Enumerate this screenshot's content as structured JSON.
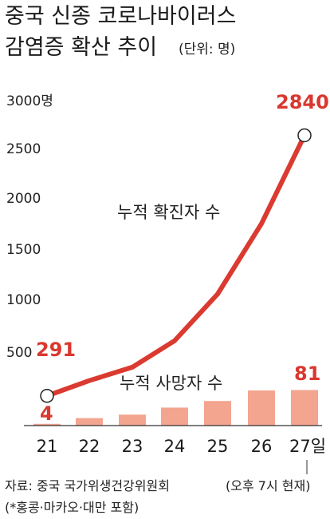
{
  "title_line1": "중국 신종 코로나바이러스",
  "title_line2": "감염증 확산 추이",
  "unit_note": "(단위: 명)",
  "colors": {
    "line": "#db3a30",
    "bar": "#f3a58f",
    "text": "#1a1a1a",
    "axis": "#333333"
  },
  "chart_data": {
    "type": "line",
    "categories": [
      "21",
      "22",
      "23",
      "24",
      "25",
      "26",
      "27일"
    ],
    "y_ticks": [
      "3000명",
      "2500",
      "2000",
      "1500",
      "1000",
      "500"
    ],
    "ylim": [
      0,
      3000
    ],
    "series": [
      {
        "name": "누적 확진자 수",
        "type": "line",
        "values": [
          291,
          440,
          571,
          830,
          1287,
          1975,
          2840
        ]
      },
      {
        "name": "누적 사망자 수",
        "type": "bar",
        "values": [
          4,
          17,
          25,
          41,
          56,
          80,
          81
        ]
      }
    ],
    "labels": {
      "first_line": "291",
      "last_line": "2840",
      "first_bar": "4",
      "last_bar": "81"
    },
    "grid": false
  },
  "footer": {
    "source": "자료: 중국 국가위생건강위원회",
    "time_note": "(오후 7시 현재)",
    "note": "(*홍콩·마카오·대만 포함)"
  }
}
